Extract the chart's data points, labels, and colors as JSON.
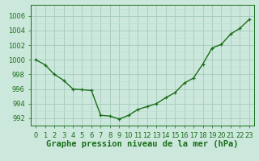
{
  "hours": [
    0,
    1,
    2,
    3,
    4,
    5,
    6,
    7,
    8,
    9,
    10,
    11,
    12,
    13,
    14,
    15,
    16,
    17,
    18,
    19,
    20,
    21,
    22,
    23
  ],
  "pressure": [
    1000.0,
    999.3,
    998.0,
    997.2,
    996.0,
    995.9,
    995.8,
    992.4,
    992.3,
    991.9,
    992.4,
    993.2,
    993.6,
    994.0,
    994.8,
    995.5,
    996.8,
    997.5,
    999.4,
    1001.6,
    1002.1,
    1003.5,
    1004.3,
    1005.5
  ],
  "line_color": "#1a6e1a",
  "marker": "+",
  "bg_color": "#cce8dc",
  "grid_color_major": "#aacfbf",
  "grid_color_minor": "#bdddd0",
  "ylabel_ticks": [
    992,
    994,
    996,
    998,
    1000,
    1002,
    1004,
    1006
  ],
  "ylim": [
    991.0,
    1007.5
  ],
  "xlim": [
    -0.5,
    23.5
  ],
  "xlabel": "Graphe pression niveau de la mer (hPa)",
  "xlabel_fontsize": 7.5,
  "tick_fontsize": 6,
  "linewidth": 1.0,
  "markersize": 3.5,
  "markeredgewidth": 0.9
}
